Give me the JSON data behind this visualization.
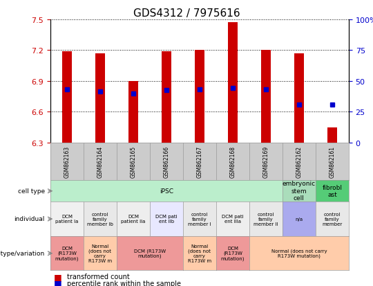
{
  "title": "GDS4312 / 7975616",
  "samples": [
    "GSM862163",
    "GSM862164",
    "GSM862165",
    "GSM862166",
    "GSM862167",
    "GSM862168",
    "GSM862169",
    "GSM862162",
    "GSM862161"
  ],
  "red_values": [
    7.19,
    7.17,
    6.9,
    7.19,
    7.2,
    7.47,
    7.2,
    7.17,
    6.45
  ],
  "blue_values": [
    6.82,
    6.8,
    6.78,
    6.81,
    6.82,
    6.83,
    6.82,
    6.67,
    6.67
  ],
  "y_min": 6.3,
  "y_max": 7.5,
  "y_ticks_left": [
    6.3,
    6.6,
    6.9,
    7.2,
    7.5
  ],
  "y_ticks_right": [
    0,
    25,
    50,
    75,
    100
  ],
  "bar_bottom": 6.3,
  "bar_color": "#cc0000",
  "dot_color": "#0000cc",
  "bg_color": "#ffffff",
  "cell_type_groups": [
    {
      "label": "iPSC",
      "start": 0,
      "end": 7,
      "color": "#bbeecc"
    },
    {
      "label": "embryonic\nstem\ncell",
      "start": 7,
      "end": 8,
      "color": "#aaddbb"
    },
    {
      "label": "fibrobl\nast",
      "start": 8,
      "end": 9,
      "color": "#55cc77"
    }
  ],
  "individual_groups": [
    {
      "label": "DCM\npatient Ia",
      "start": 0,
      "end": 1,
      "color": "#f0f0f0"
    },
    {
      "label": "control\nfamily\nmember Ib",
      "start": 1,
      "end": 2,
      "color": "#e8e8e8"
    },
    {
      "label": "DCM\npatient IIa",
      "start": 2,
      "end": 3,
      "color": "#eeeeee"
    },
    {
      "label": "DCM pati\nent IIb",
      "start": 3,
      "end": 4,
      "color": "#e8e8ff"
    },
    {
      "label": "control\nfamily\nmember I",
      "start": 4,
      "end": 5,
      "color": "#e8e8e8"
    },
    {
      "label": "DCM pati\nent IIIa",
      "start": 5,
      "end": 6,
      "color": "#eeeeee"
    },
    {
      "label": "control\nfamily\nmember II",
      "start": 6,
      "end": 7,
      "color": "#e8e8e8"
    },
    {
      "label": "n/a",
      "start": 7,
      "end": 8,
      "color": "#aaaaee"
    },
    {
      "label": "control\nfamily\nmember",
      "start": 8,
      "end": 9,
      "color": "#e8e8e8"
    }
  ],
  "genotype_groups": [
    {
      "label": "DCM\n(R173W\nmutation)",
      "start": 0,
      "end": 1,
      "color": "#ee9999"
    },
    {
      "label": "Normal\n(does not\ncarry\nR173W m",
      "start": 1,
      "end": 2,
      "color": "#ffccaa"
    },
    {
      "label": "DCM (R173W\nmutation)",
      "start": 2,
      "end": 4,
      "color": "#ee9999"
    },
    {
      "label": "Normal\n(does not\ncarry\nR173W m",
      "start": 4,
      "end": 5,
      "color": "#ffccaa"
    },
    {
      "label": "DCM\n(R173W\nmutation)",
      "start": 5,
      "end": 6,
      "color": "#ee9999"
    },
    {
      "label": "Normal (does not carry\nR173W mutation)",
      "start": 6,
      "end": 9,
      "color": "#ffccaa"
    }
  ],
  "row_labels": [
    "cell type",
    "individual",
    "genotype/variation"
  ],
  "gsm_box_color": "#cccccc"
}
